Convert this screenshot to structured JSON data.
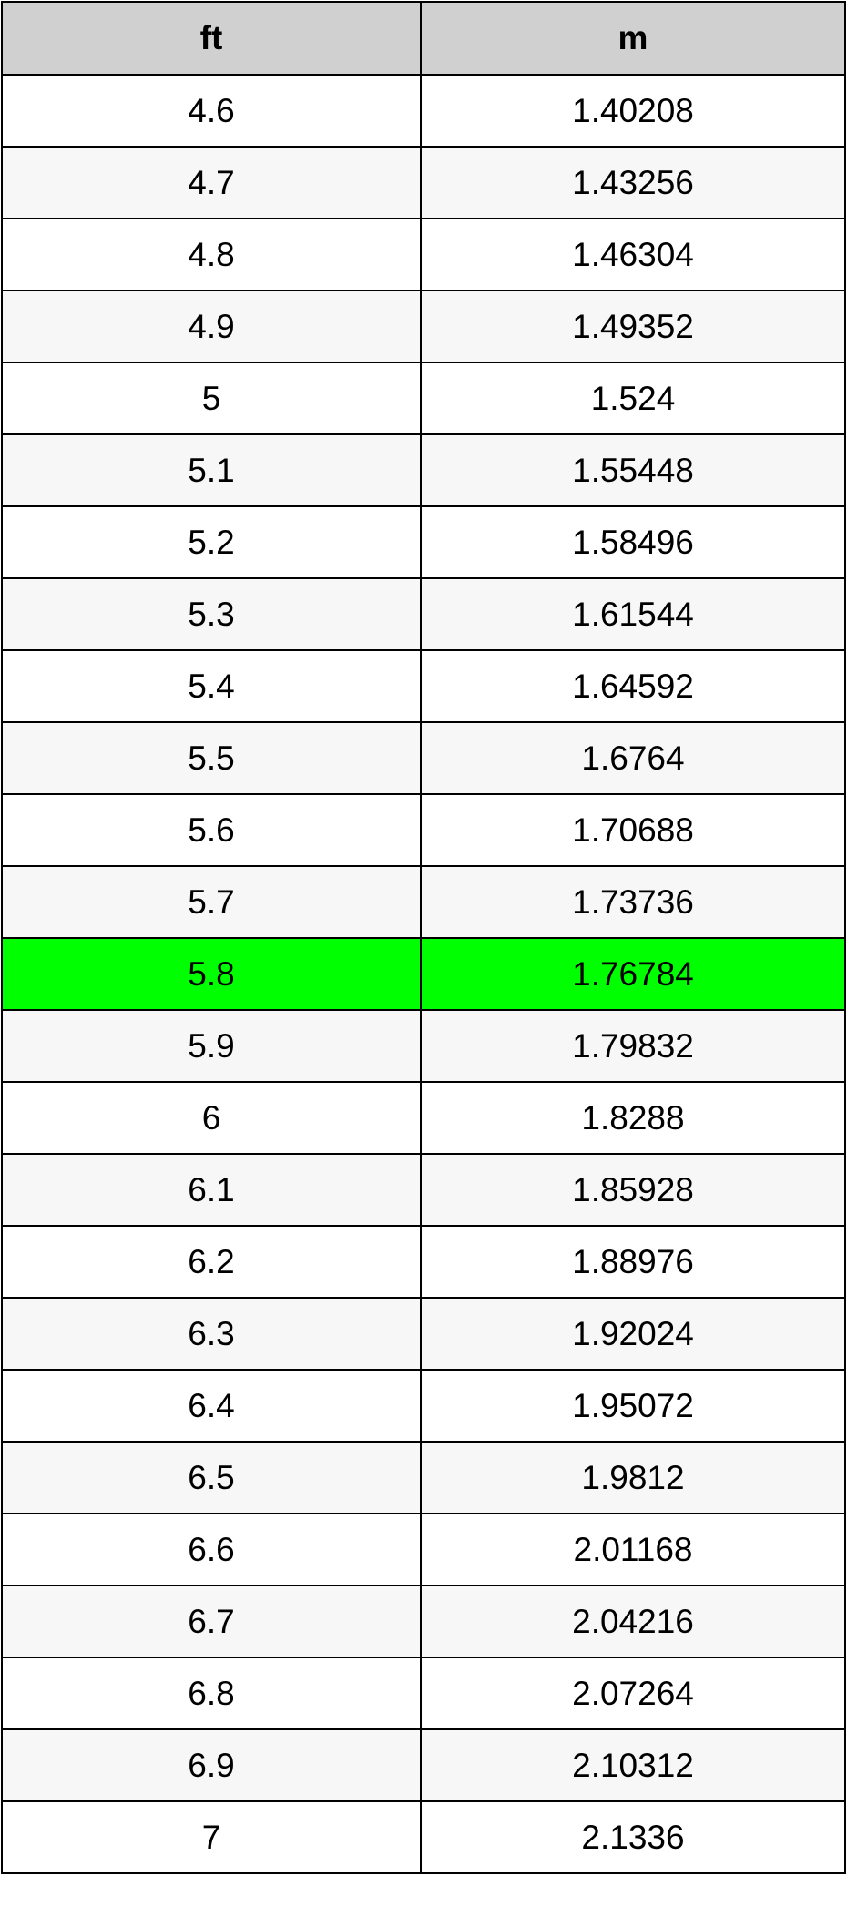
{
  "table": {
    "headers": [
      "ft",
      "m"
    ],
    "highlight_color": "#00ff00",
    "highlighted_row": 12,
    "rows": [
      [
        "4.6",
        "1.40208"
      ],
      [
        "4.7",
        "1.43256"
      ],
      [
        "4.8",
        "1.46304"
      ],
      [
        "4.9",
        "1.49352"
      ],
      [
        "5",
        "1.524"
      ],
      [
        "5.1",
        "1.55448"
      ],
      [
        "5.2",
        "1.58496"
      ],
      [
        "5.3",
        "1.61544"
      ],
      [
        "5.4",
        "1.64592"
      ],
      [
        "5.5",
        "1.6764"
      ],
      [
        "5.6",
        "1.70688"
      ],
      [
        "5.7",
        "1.73736"
      ],
      [
        "5.8",
        "1.76784"
      ],
      [
        "5.9",
        "1.79832"
      ],
      [
        "6",
        "1.8288"
      ],
      [
        "6.1",
        "1.85928"
      ],
      [
        "6.2",
        "1.88976"
      ],
      [
        "6.3",
        "1.92024"
      ],
      [
        "6.4",
        "1.95072"
      ],
      [
        "6.5",
        "1.9812"
      ],
      [
        "6.6",
        "2.01168"
      ],
      [
        "6.7",
        "2.04216"
      ],
      [
        "6.8",
        "2.07264"
      ],
      [
        "6.9",
        "2.10312"
      ],
      [
        "7",
        "2.1336"
      ]
    ]
  }
}
